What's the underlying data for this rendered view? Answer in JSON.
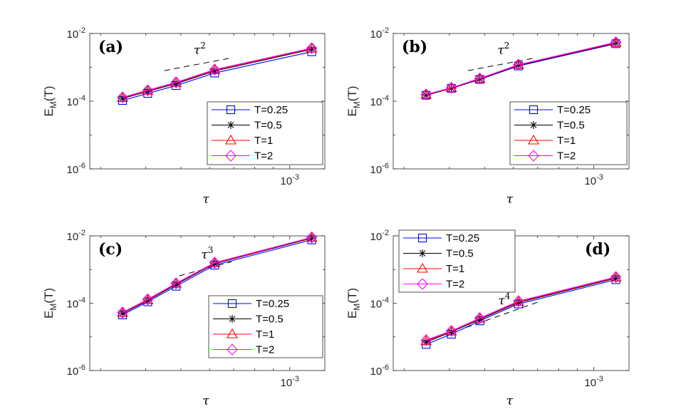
{
  "chart_data": [
    {
      "type": "line",
      "panel_label": "(a)",
      "scale": "loglog",
      "xlim": [
        0.00028,
        0.00125
      ],
      "ylim": [
        1e-06,
        0.01
      ],
      "xlabel": "τ",
      "ylabel": "E",
      "ylabel_sub": "M",
      "ylabel_suffix": "(T)",
      "yticks": [
        {
          "value": 1e-06,
          "base": "10",
          "exp": "-6"
        },
        {
          "value": 0.0001,
          "base": "10",
          "exp": "-4"
        },
        {
          "value": 0.01,
          "base": "10",
          "exp": "-2"
        }
      ],
      "xticks": [
        {
          "value": 0.001,
          "base": "10",
          "exp": "-3"
        }
      ],
      "x": [
        0.000345,
        0.000405,
        0.000485,
        0.00062,
        0.00115
      ],
      "series": [
        {
          "name": "T=0.25",
          "values": [
            0.000105,
            0.00017,
            0.00029,
            0.00068,
            0.0029
          ]
        },
        {
          "name": "T=0.5",
          "values": [
            0.00012,
            0.000195,
            0.00033,
            0.00078,
            0.0034
          ]
        },
        {
          "name": "T=1",
          "values": [
            0.000125,
            0.000205,
            0.00035,
            0.00083,
            0.0036
          ]
        },
        {
          "name": "T=2",
          "values": [
            0.00013,
            0.00021,
            0.00036,
            0.00086,
            0.0037
          ]
        }
      ],
      "reference": {
        "label": "τ",
        "label_exp": "2",
        "x": [
          0.00045,
          0.00069
        ],
        "y": [
          0.0008,
          0.0019
        ]
      },
      "legend": "bottom-right"
    },
    {
      "type": "line",
      "panel_label": "(b)",
      "scale": "loglog",
      "xlim": [
        0.00028,
        0.00125
      ],
      "ylim": [
        1e-06,
        0.01
      ],
      "xlabel": "τ",
      "ylabel": "E",
      "ylabel_sub": "M",
      "ylabel_suffix": "(T)",
      "yticks": [
        {
          "value": 1e-06,
          "base": "10",
          "exp": "-6"
        },
        {
          "value": 0.0001,
          "base": "10",
          "exp": "-4"
        },
        {
          "value": 0.01,
          "base": "10",
          "exp": "-2"
        }
      ],
      "xticks": [
        {
          "value": 0.001,
          "base": "10",
          "exp": "-3"
        }
      ],
      "x": [
        0.000345,
        0.000405,
        0.000485,
        0.00062,
        0.00115
      ],
      "series": [
        {
          "name": "T=0.25",
          "values": [
            0.00015,
            0.00024,
            0.00044,
            0.0011,
            0.005
          ]
        },
        {
          "name": "T=0.5",
          "values": [
            0.00015,
            0.00024,
            0.00045,
            0.00115,
            0.0052
          ]
        },
        {
          "name": "T=1",
          "values": [
            0.000155,
            0.000245,
            0.00046,
            0.00118,
            0.0053
          ]
        },
        {
          "name": "T=2",
          "values": [
            0.000158,
            0.00025,
            0.00047,
            0.0012,
            0.0055
          ]
        }
      ],
      "reference": {
        "label": "τ",
        "label_exp": "2",
        "x": [
          0.00045,
          0.00069
        ],
        "y": [
          0.0008,
          0.0019
        ]
      },
      "legend": "bottom-right"
    },
    {
      "type": "line",
      "panel_label": "(c)",
      "scale": "loglog",
      "xlim": [
        0.00028,
        0.00125
      ],
      "ylim": [
        1e-06,
        0.01
      ],
      "xlabel": "τ",
      "ylabel": "E",
      "ylabel_sub": "M",
      "ylabel_suffix": "(T)",
      "yticks": [
        {
          "value": 1e-06,
          "base": "10",
          "exp": "-6"
        },
        {
          "value": 0.0001,
          "base": "10",
          "exp": "-4"
        },
        {
          "value": 0.01,
          "base": "10",
          "exp": "-2"
        }
      ],
      "xticks": [
        {
          "value": 0.001,
          "base": "10",
          "exp": "-3"
        }
      ],
      "x": [
        0.000345,
        0.000405,
        0.000485,
        0.00062,
        0.00115
      ],
      "series": [
        {
          "name": "T=0.25",
          "values": [
            4.5e-05,
            0.00011,
            0.00032,
            0.00135,
            0.0076
          ]
        },
        {
          "name": "T=0.5",
          "values": [
            5e-05,
            0.00012,
            0.00036,
            0.0015,
            0.0085
          ]
        },
        {
          "name": "T=1",
          "values": [
            5.2e-05,
            0.000125,
            0.00038,
            0.00155,
            0.0088
          ]
        },
        {
          "name": "T=2",
          "values": [
            5.3e-05,
            0.00013,
            0.00039,
            0.0016,
            0.009
          ]
        }
      ],
      "reference": {
        "label": "τ",
        "label_exp": "3",
        "x": [
          0.000495,
          0.00069
        ],
        "y": [
          0.00065,
          0.0017
        ]
      },
      "legend": "bottom-right"
    },
    {
      "type": "line",
      "panel_label": "(d)",
      "scale": "loglog",
      "xlim": [
        0.00028,
        0.00125
      ],
      "ylim": [
        1e-06,
        0.01
      ],
      "xlabel": "τ",
      "ylabel": "E",
      "ylabel_sub": "M",
      "ylabel_suffix": "(T)",
      "yticks": [
        {
          "value": 1e-06,
          "base": "10",
          "exp": "-6"
        },
        {
          "value": 0.0001,
          "base": "10",
          "exp": "-4"
        },
        {
          "value": 0.01,
          "base": "10",
          "exp": "-2"
        }
      ],
      "xticks": [
        {
          "value": 0.001,
          "base": "10",
          "exp": "-3"
        }
      ],
      "x": [
        0.000345,
        0.000405,
        0.000485,
        0.00062,
        0.00115
      ],
      "series": [
        {
          "name": "T=0.25",
          "values": [
            6e-06,
            1.2e-05,
            3e-05,
            9.5e-05,
            0.0005
          ]
        },
        {
          "name": "T=0.5",
          "values": [
            7e-06,
            1.4e-05,
            3.3e-05,
            0.000105,
            0.00055
          ]
        },
        {
          "name": "T=1",
          "values": [
            7.5e-06,
            1.45e-05,
            3.5e-05,
            0.00011,
            0.00058
          ]
        },
        {
          "name": "T=2",
          "values": [
            8e-06,
            1.5e-05,
            3.6e-05,
            0.000115,
            0.0006
          ]
        }
      ],
      "reference": {
        "label": "τ",
        "label_exp": "4",
        "x": [
          0.000445,
          0.000705
        ],
        "y": [
          1.9e-05,
          0.00011
        ]
      },
      "legend": "top-left"
    }
  ],
  "style": {
    "series_colors": [
      "#0000ff",
      "#000000",
      "#ff0000",
      "#ff00ff"
    ],
    "series_markers": [
      "square",
      "asterisk",
      "triangle",
      "diamond"
    ],
    "axis_color": "#262626",
    "background": "#ffffff"
  }
}
